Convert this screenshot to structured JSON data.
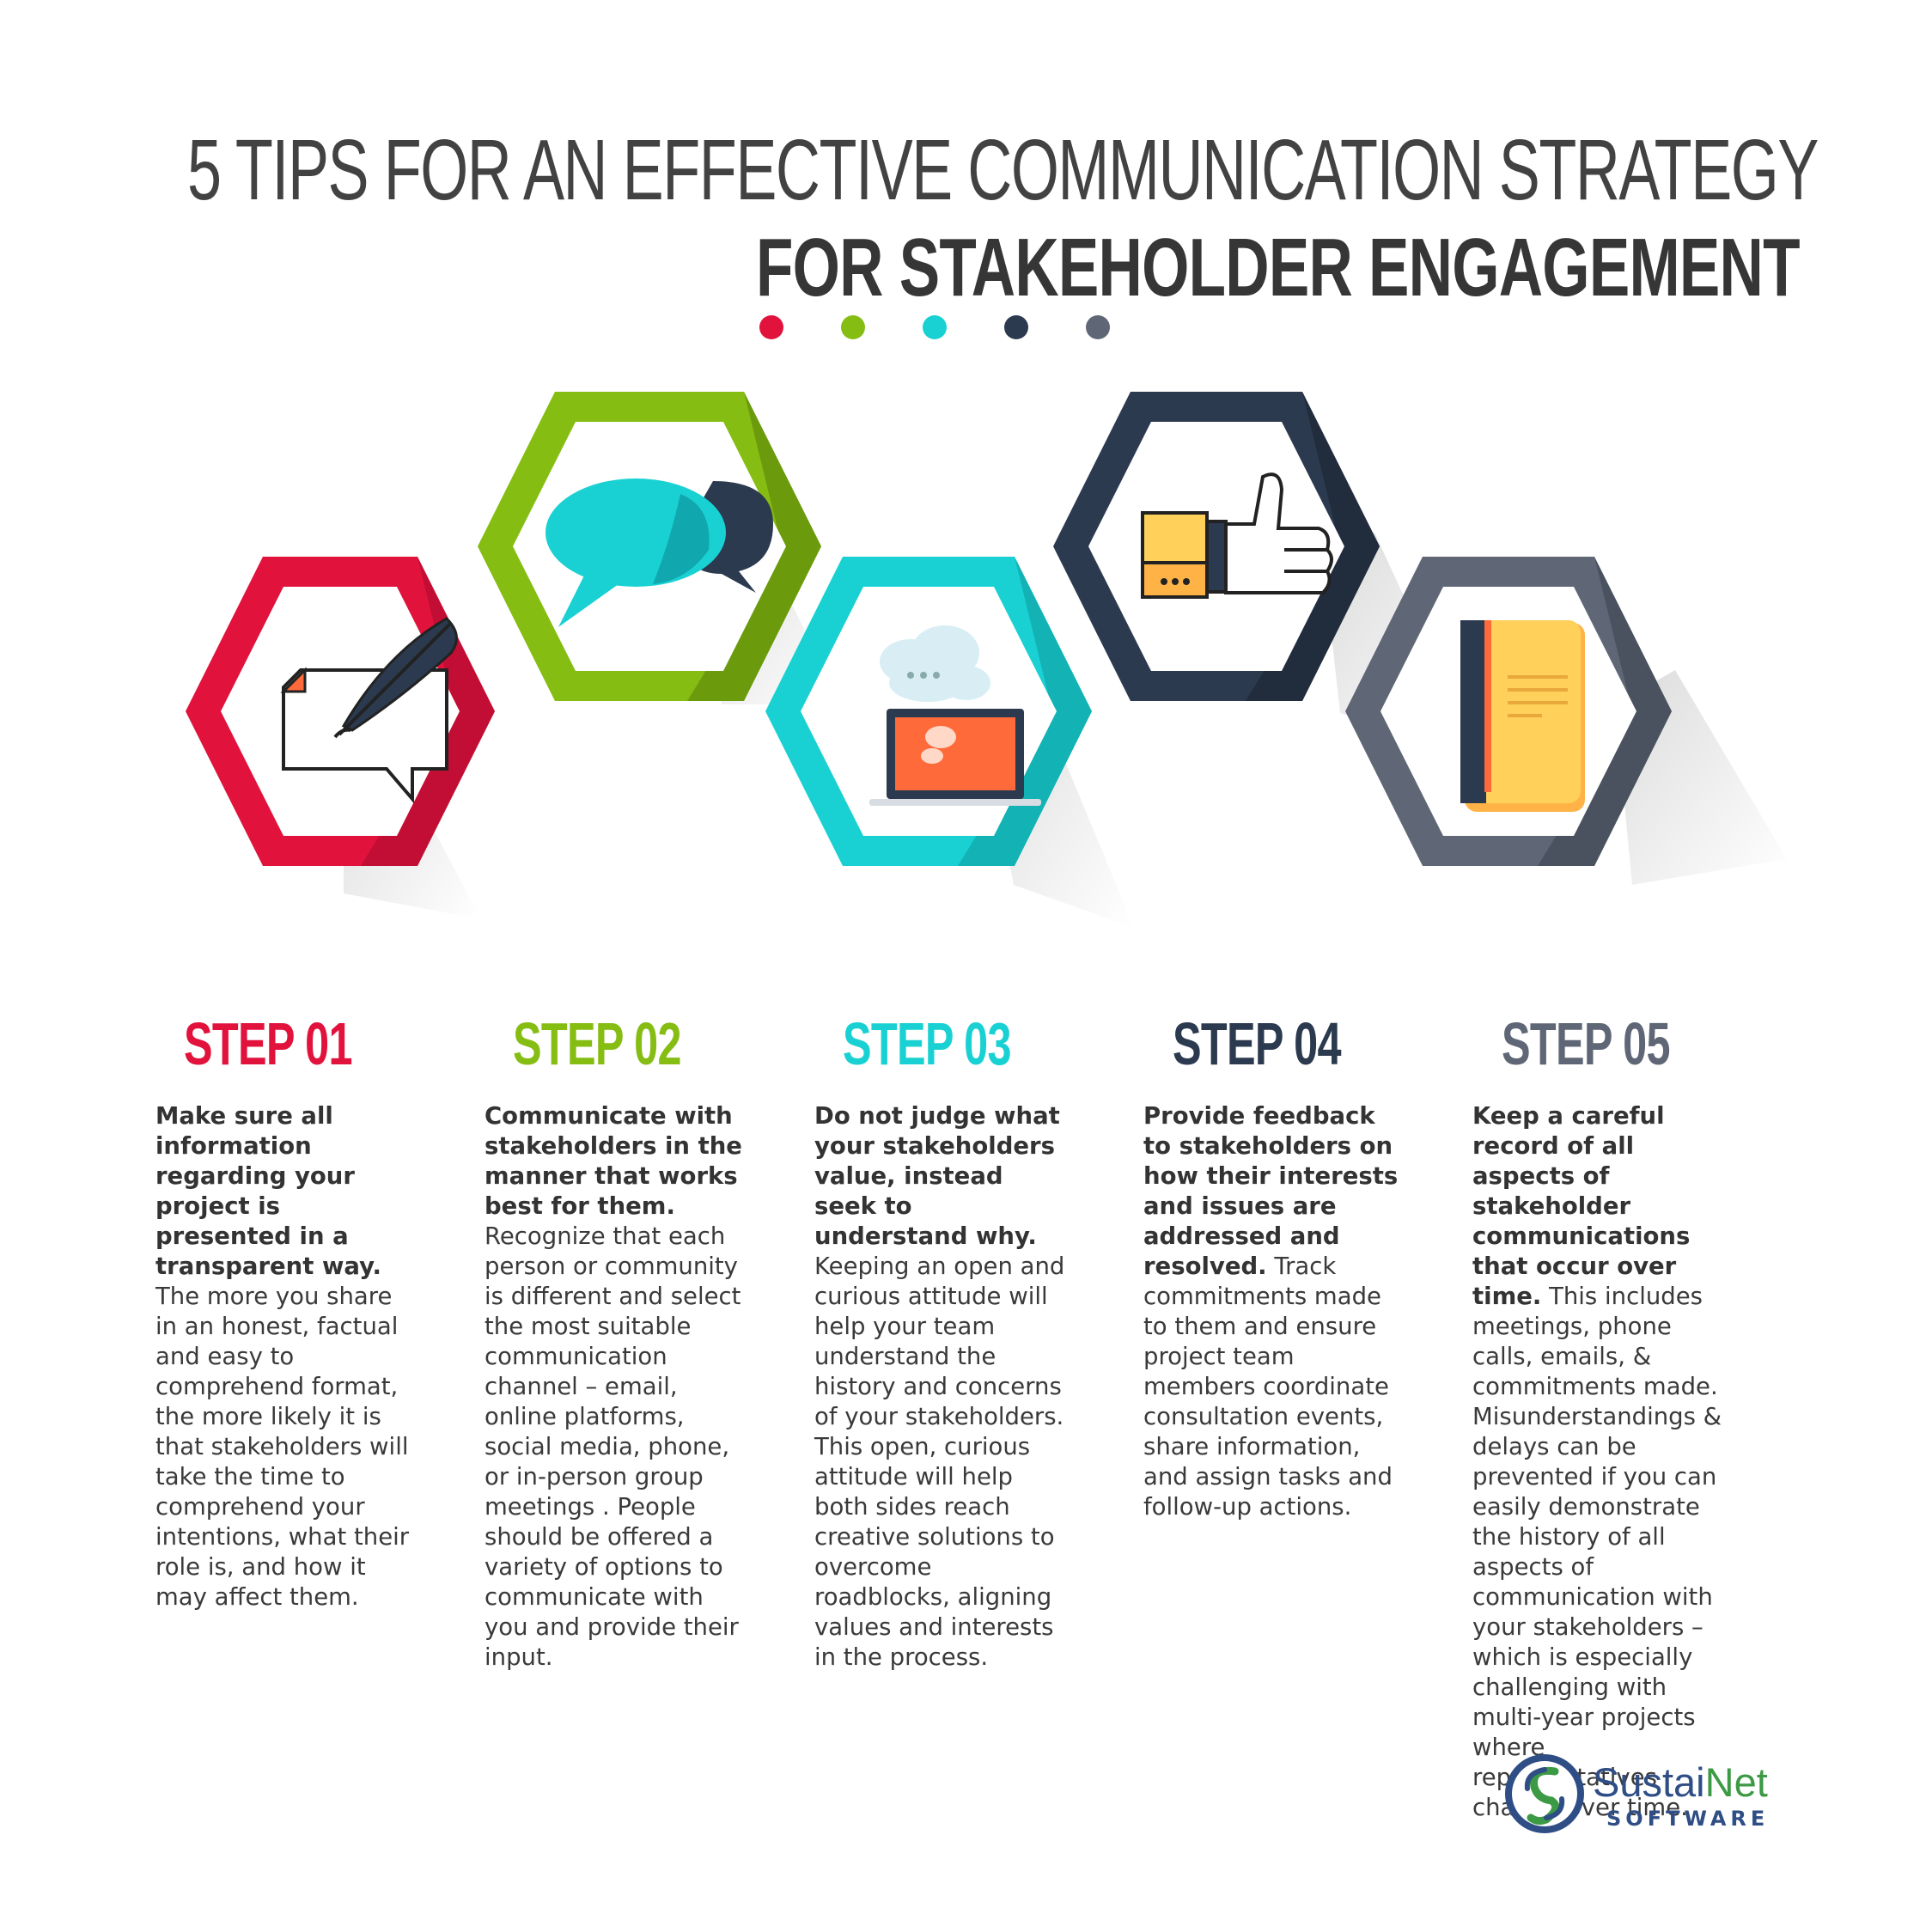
{
  "title": {
    "line1": "5 TIPS FOR AN EFFECTIVE COMMUNICATION STRATEGY",
    "line2": "FOR STAKEHOLDER ENGAGEMENT"
  },
  "colors": {
    "red": "#e1123c",
    "green": "#86bd13",
    "cyan": "#19d1d3",
    "navy": "#2c3a4f",
    "gray": "#5f6776",
    "orange": "#ff6a3a",
    "yellow": "#ffd05a"
  },
  "steps": [
    {
      "title": "STEP 01",
      "color": "#e1123c",
      "icon": "feather-note-icon",
      "bold": "Make sure all information regarding your project is presented in a transparent way.",
      "text": " The more you share in an honest, factual and easy to comprehend format, the more likely it is that stakeholders will take the time to comprehend your intentions, what their role is, and how it may affect them."
    },
    {
      "title": "STEP 02",
      "color": "#86bd13",
      "icon": "speech-bubbles-icon",
      "bold": "Communicate with stakeholders in the manner that works best for them.",
      "text": " Recognize that each person or community is different and select the most suitable communication channel – email, online platforms, social media, phone, or in-person group meetings . People should be offered a variety of options to communicate with you and provide their input."
    },
    {
      "title": "STEP 03",
      "color": "#19d1d3",
      "icon": "laptop-cloud-icon",
      "bold": "Do not judge what your stakeholders value, instead seek to understand why.",
      "text": " Keeping an open and curious attitude will help your team understand the history and concerns of your stakeholders. This open, curious attitude will help both sides reach creative solutions to overcome roadblocks, aligning values and interests in the process."
    },
    {
      "title": "STEP 04",
      "color": "#2c3a4f",
      "icon": "thumbs-up-icon",
      "bold": "Provide feedback to stakeholders on how their interests and issues are addressed and resolved.",
      "text": " Track commitments made to them and ensure project team members coordinate consultation events, share information, and assign tasks and follow-up actions."
    },
    {
      "title": "STEP 05",
      "color": "#5f6776",
      "icon": "notebook-icon",
      "bold": "Keep a careful record of all aspects of stakeholder communications that occur over time.",
      "text": " This includes meetings, phone calls, emails, & commitments made. Misunderstandings & delays can be prevented if you can easily demonstrate the history of all aspects of communication with your stakeholders – which is especially challenging with multi-year projects where representatives change over time."
    }
  ],
  "logo": {
    "name_a": "Sustai",
    "name_b": "Net",
    "sub": "SOFTWARE"
  }
}
